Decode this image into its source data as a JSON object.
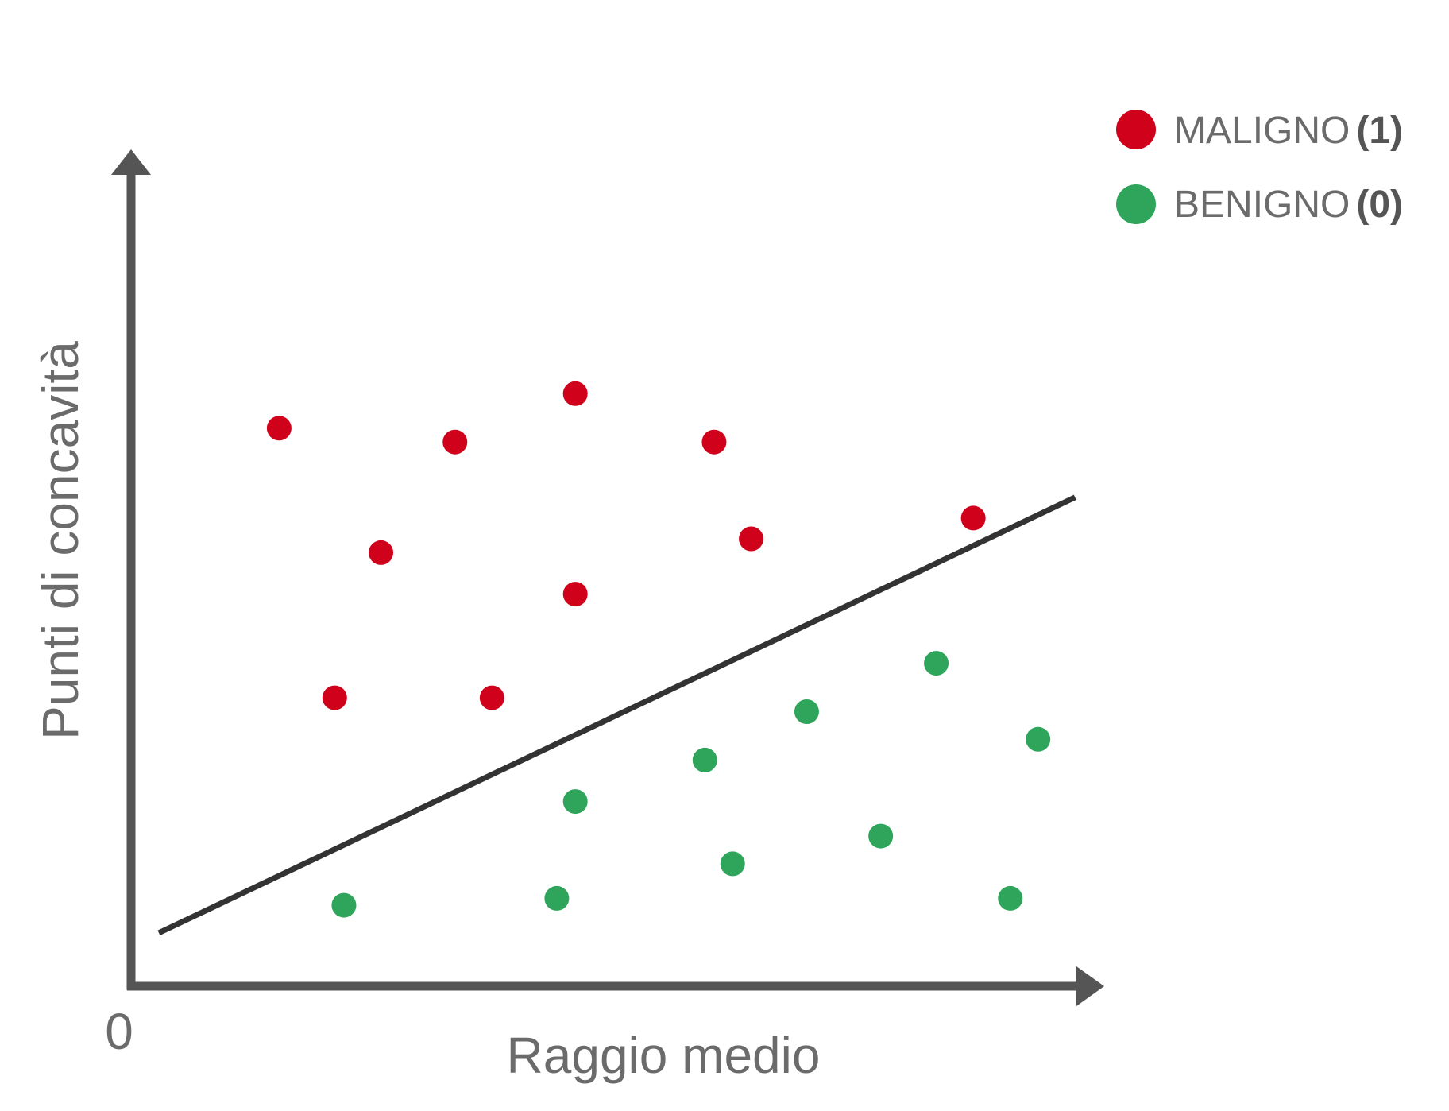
{
  "chart_data": {
    "type": "scatter",
    "xlabel": "Raggio medio",
    "ylabel": "Punti di concavità",
    "origin_label": "0",
    "xlim": [
      0,
      100
    ],
    "ylim": [
      0,
      100
    ],
    "grid": false,
    "legend_position": "top-right",
    "series": [
      {
        "name": "MALIGNO",
        "code": "(1)",
        "color": "#d0021b",
        "points": [
          {
            "x": 16,
            "y": 76
          },
          {
            "x": 35,
            "y": 74
          },
          {
            "x": 48,
            "y": 81
          },
          {
            "x": 63,
            "y": 74
          },
          {
            "x": 27,
            "y": 58
          },
          {
            "x": 67,
            "y": 60
          },
          {
            "x": 48,
            "y": 52
          },
          {
            "x": 91,
            "y": 63
          },
          {
            "x": 22,
            "y": 37
          },
          {
            "x": 39,
            "y": 37
          }
        ]
      },
      {
        "name": "BENIGNO",
        "code": "(0)",
        "color": "#2ea55a",
        "points": [
          {
            "x": 87,
            "y": 42
          },
          {
            "x": 73,
            "y": 35
          },
          {
            "x": 98,
            "y": 31
          },
          {
            "x": 62,
            "y": 28
          },
          {
            "x": 48,
            "y": 22
          },
          {
            "x": 81,
            "y": 17
          },
          {
            "x": 65,
            "y": 13
          },
          {
            "x": 46,
            "y": 8
          },
          {
            "x": 23,
            "y": 7
          },
          {
            "x": 95,
            "y": 8
          }
        ]
      }
    ],
    "decision_boundary": {
      "color": "#333333",
      "points": [
        {
          "x": 3,
          "y": 3
        },
        {
          "x": 102,
          "y": 66
        }
      ]
    }
  }
}
